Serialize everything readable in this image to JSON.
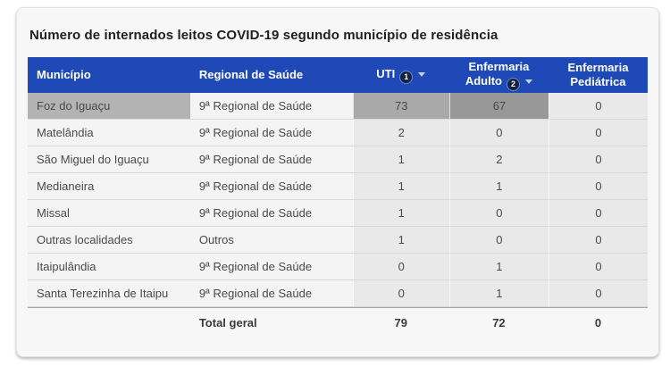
{
  "title": "Número de internados leitos COVID-19 segundo município de residência",
  "table": {
    "columns": [
      {
        "label": "Município"
      },
      {
        "label": "Regional de Saúde"
      },
      {
        "label": "UTI",
        "badge": "1",
        "sort": "desc"
      },
      {
        "label": "Enfermaria Adulto",
        "badge": "2",
        "sort": "desc"
      },
      {
        "label": "Enfermaria Pediátrica"
      }
    ],
    "rows": [
      {
        "municipio": "Foz do Iguaçu",
        "regional": "9ª Regional de Saúde",
        "uti": "73",
        "enf_adulto": "67",
        "enf_pediatrica": "0",
        "selected": true
      },
      {
        "municipio": "Matelândia",
        "regional": "9ª Regional de Saúde",
        "uti": "2",
        "enf_adulto": "0",
        "enf_pediatrica": "0"
      },
      {
        "municipio": "São Miguel do Iguaçu",
        "regional": "9ª Regional de Saúde",
        "uti": "1",
        "enf_adulto": "2",
        "enf_pediatrica": "0"
      },
      {
        "municipio": "Medianeira",
        "regional": "9ª Regional de Saúde",
        "uti": "1",
        "enf_adulto": "1",
        "enf_pediatrica": "0"
      },
      {
        "municipio": "Missal",
        "regional": "9ª Regional de Saúde",
        "uti": "1",
        "enf_adulto": "0",
        "enf_pediatrica": "0"
      },
      {
        "municipio": "Outras localidades",
        "regional": "Outros",
        "uti": "1",
        "enf_adulto": "0",
        "enf_pediatrica": "0"
      },
      {
        "municipio": "Itaipulândia",
        "regional": "9ª Regional de Saúde",
        "uti": "0",
        "enf_adulto": "1",
        "enf_pediatrica": "0"
      },
      {
        "municipio": "Santa Terezinha de Itaipu",
        "regional": "9ª Regional de Saúde",
        "uti": "0",
        "enf_adulto": "1",
        "enf_pediatrica": "0"
      }
    ],
    "total": {
      "label": "Total geral",
      "uti": "79",
      "enf_adulto": "72",
      "enf_pediatrica": "0"
    }
  },
  "colors": {
    "card_bg": "#f7f7f7",
    "header_bg": "#1e49b7",
    "header_text": "#ffffff",
    "text_col_bg": "#f4f4f4",
    "numeric_col_bg": "#e9e9e9",
    "selected_cell": "#b3b3b3",
    "selected_uti": "#a9a9a9",
    "selected_adulto": "#989898"
  },
  "chart_data": {
    "type": "table",
    "title": "Número de internados leitos COVID-19 segundo município de residência",
    "columns": [
      "Município",
      "Regional de Saúde",
      "UTI",
      "Enfermaria Adulto",
      "Enfermaria Pediátrica"
    ],
    "rows": [
      [
        "Foz do Iguaçu",
        "9ª Regional de Saúde",
        73,
        67,
        0
      ],
      [
        "Matelândia",
        "9ª Regional de Saúde",
        2,
        0,
        0
      ],
      [
        "São Miguel do Iguaçu",
        "9ª Regional de Saúde",
        1,
        2,
        0
      ],
      [
        "Medianeira",
        "9ª Regional de Saúde",
        1,
        1,
        0
      ],
      [
        "Missal",
        "9ª Regional de Saúde",
        1,
        0,
        0
      ],
      [
        "Outras localidades",
        "Outros",
        1,
        0,
        0
      ],
      [
        "Itaipulândia",
        "9ª Regional de Saúde",
        0,
        1,
        0
      ],
      [
        "Santa Terezinha de Itaipu",
        "9ª Regional de Saúde",
        0,
        1,
        0
      ]
    ],
    "total_row": [
      "",
      "Total geral",
      79,
      72,
      0
    ],
    "sort": [
      {
        "column": "UTI",
        "order": 1,
        "direction": "desc"
      },
      {
        "column": "Enfermaria Adulto",
        "order": 2,
        "direction": "desc"
      }
    ],
    "highlighted_row": "Foz do Iguaçu",
    "legend_position": "none",
    "grid": "horizontal-row-separators"
  }
}
